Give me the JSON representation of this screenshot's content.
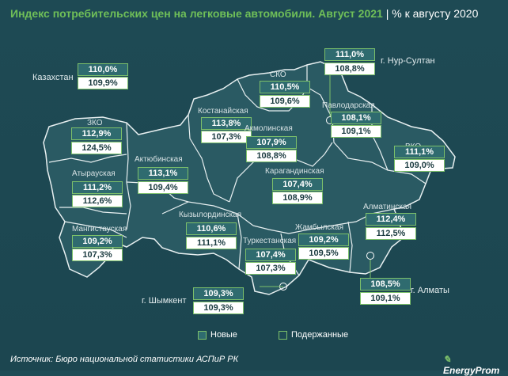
{
  "header": {
    "title": "Индекс потребительских цен на легковые автомобили. Август 2021",
    "subtitle": "| % к августу 2020"
  },
  "country": {
    "label": "Казахстан",
    "new": "110,0%",
    "used": "109,9%"
  },
  "regions": [
    {
      "id": "zko",
      "label": "ЗКО",
      "new": "112,9%",
      "used": "124,5%"
    },
    {
      "id": "atyrau",
      "label": "Атырауская",
      "new": "111,2%",
      "used": "112,6%"
    },
    {
      "id": "mangistau",
      "label": "Мангистауская",
      "new": "109,2%",
      "used": "107,3%"
    },
    {
      "id": "aktobe",
      "label": "Актюбинская",
      "new": "113,1%",
      "used": "109,4%"
    },
    {
      "id": "kostanay",
      "label": "Костанайская",
      "new": "113,8%",
      "used": "107,3%"
    },
    {
      "id": "sko",
      "label": "СКО",
      "new": "110,5%",
      "used": "109,6%"
    },
    {
      "id": "akmola",
      "label": "Акмолинская",
      "new": "107,9%",
      "used": "108,8%"
    },
    {
      "id": "pavlodar",
      "label": "Павлодарская",
      "new": "108,1%",
      "used": "109,1%"
    },
    {
      "id": "vko",
      "label": "ВКО",
      "new": "111,1%",
      "used": "109,0%"
    },
    {
      "id": "karaganda",
      "label": "Карагандинская",
      "new": "107,4%",
      "used": "108,9%"
    },
    {
      "id": "kyzylorda",
      "label": "Кызылординская",
      "new": "110,6%",
      "used": "111,1%"
    },
    {
      "id": "turkestan",
      "label": "Туркестанская",
      "new": "107,4%",
      "used": "107,3%"
    },
    {
      "id": "zhambyl",
      "label": "Жамбылская",
      "new": "109,2%",
      "used": "109,5%"
    },
    {
      "id": "almaty_reg",
      "label": "Алматинская",
      "new": "112,4%",
      "used": "112,5%"
    }
  ],
  "cities": [
    {
      "id": "nursultan",
      "label": "г. Нур-Султан",
      "new": "111,0%",
      "used": "108,8%"
    },
    {
      "id": "shymkent",
      "label": "г. Шымкент",
      "new": "109,3%",
      "used": "109,3%"
    },
    {
      "id": "almaty",
      "label": "г. Алматы",
      "new": "108,5%",
      "used": "109,1%"
    }
  ],
  "legend": {
    "new_label": "Новые",
    "used_label": "Подержанные"
  },
  "footer": {
    "source": "Источник: Бюро национальной статистики АСПиР РК",
    "brand": "EnergyProm"
  },
  "colors": {
    "accent": "#7cc06a",
    "background": "#1e4a54",
    "map_fill": "#2a5a63"
  }
}
